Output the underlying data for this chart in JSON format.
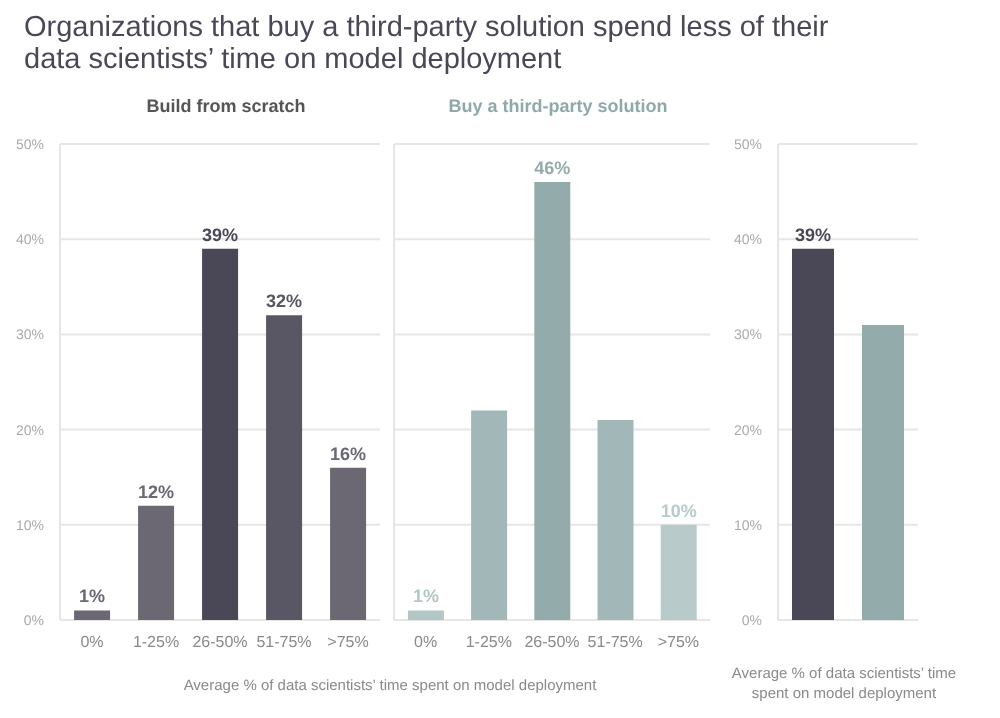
{
  "chart_data": [
    {
      "type": "bar",
      "title": "Organizations that buy a third-party solution spend less of their data scientists’ time on model deployment",
      "subtitle": "Build from scratch",
      "xlabel": "Average % of data scientists’ time spent on model deployment",
      "categories": [
        "0%",
        "1-25%",
        "26-50%",
        "51-75%",
        ">75%"
      ],
      "values": [
        1,
        12,
        39,
        32,
        16
      ],
      "colors": [
        "#6b6773",
        "#6b6773",
        "#4a4756",
        "#5a5764",
        "#6b6773"
      ],
      "value_labels": [
        "1%",
        "12%",
        "39%",
        "32%",
        "16%"
      ],
      "ylim": [
        0,
        50
      ],
      "yticks": [
        {
          "value": 0,
          "label": "0%"
        },
        {
          "value": 10,
          "label": "10%"
        },
        {
          "value": 20,
          "label": "20%"
        },
        {
          "value": 30,
          "label": "30%"
        },
        {
          "value": 40,
          "label": "40%"
        },
        {
          "value": 50,
          "label": "50%"
        }
      ],
      "grid": "y"
    },
    {
      "type": "bar",
      "subtitle": "Buy a third-party solution",
      "categories": [
        "0%",
        "1-25%",
        "26-50%",
        "51-75%",
        ">75%"
      ],
      "values": [
        1,
        22,
        46,
        21,
        10
      ],
      "colors": [
        "#b3c6c6",
        "#a2b8b8",
        "#93abab",
        "#a2b8b8",
        "#b8caca"
      ],
      "value_labels": [
        "1%",
        null,
        "46%",
        null,
        "10%"
      ],
      "ylim": [
        0,
        50
      ],
      "yticks": [
        {
          "value": 0,
          "label": null
        },
        {
          "value": 10,
          "label": null
        },
        {
          "value": 20,
          "label": null
        },
        {
          "value": 30,
          "label": null
        },
        {
          "value": 40,
          "label": null
        },
        {
          "value": 50,
          "label": null
        }
      ],
      "grid": "y",
      "tick_labels": "x"
    },
    {
      "type": "bar",
      "xlabel": "Average % of data scientists’ time spent on model deployment",
      "categories": [
        null,
        null
      ],
      "values": [
        39,
        31
      ],
      "colors": [
        "#4a4756",
        "#93abab"
      ],
      "value_labels": [
        "39%",
        null
      ],
      "ylim": [
        0,
        50
      ],
      "yticks": [
        {
          "value": 0,
          "label": "0%"
        },
        {
          "value": 10,
          "label": "10%"
        },
        {
          "value": 20,
          "label": "20%"
        },
        {
          "value": 30,
          "label": "30%"
        },
        {
          "value": 40,
          "label": "40%"
        },
        {
          "value": 50,
          "label": "50%"
        }
      ],
      "grid": "y"
    }
  ]
}
